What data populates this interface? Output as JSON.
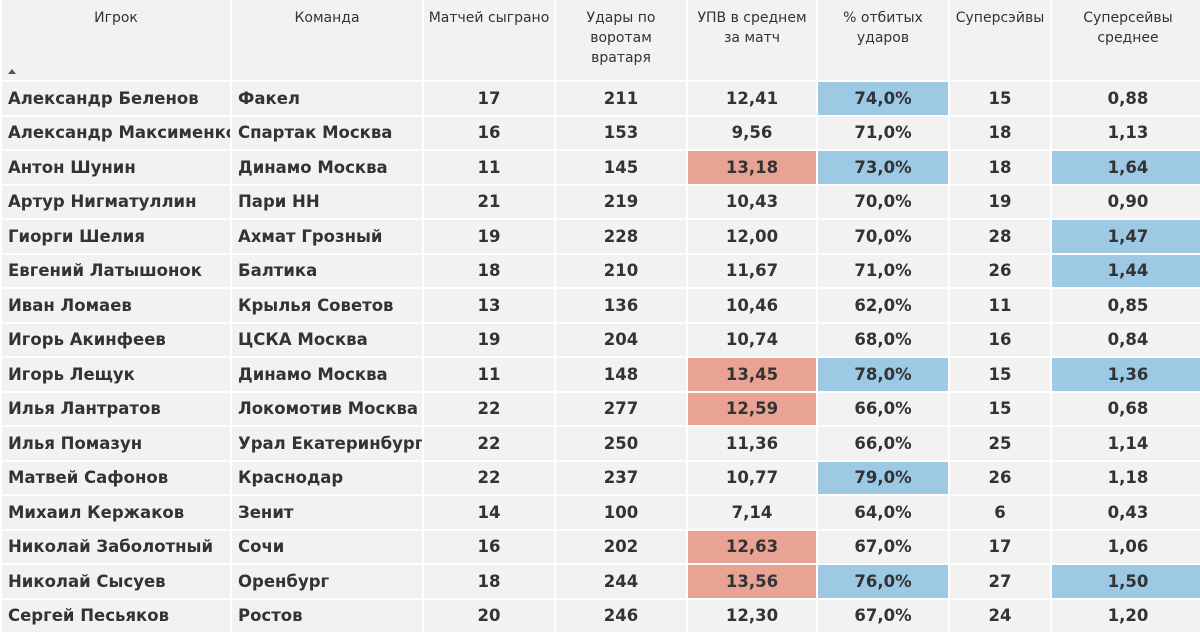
{
  "columns": [
    "Игрок",
    "Команда",
    "Матчей сыграно",
    "Удары по воротам вратаря",
    "УПВ в среднем за матч",
    "% отбитых ударов",
    "Суперсэйвы",
    "Суперсейвы среднее"
  ],
  "sort": {
    "column": "Игрок",
    "direction": "ascending",
    "icon": "sort-ascending-icon"
  },
  "highlight_colors": {
    "red": "#e8a394",
    "blue": "#9ec9e4"
  },
  "rows": [
    {
      "player": "Александр Беленов",
      "team": "Факел",
      "matches": "17",
      "shots": "211",
      "spg": "12,41",
      "save_pct": "74,0%",
      "supersaves": "15",
      "supersaves_avg": "0,88",
      "hl_spg": "",
      "hl_pct": "blue",
      "hl_avg": ""
    },
    {
      "player": "Александр Максименко",
      "team": "Спартак Москва",
      "matches": "16",
      "shots": "153",
      "spg": "9,56",
      "save_pct": "71,0%",
      "supersaves": "18",
      "supersaves_avg": "1,13",
      "hl_spg": "",
      "hl_pct": "",
      "hl_avg": ""
    },
    {
      "player": "Антон Шунин",
      "team": "Динамо Москва",
      "matches": "11",
      "shots": "145",
      "spg": "13,18",
      "save_pct": "73,0%",
      "supersaves": "18",
      "supersaves_avg": "1,64",
      "hl_spg": "red",
      "hl_pct": "blue",
      "hl_avg": "blue"
    },
    {
      "player": "Артур Нигматуллин",
      "team": "Пари НН",
      "matches": "21",
      "shots": "219",
      "spg": "10,43",
      "save_pct": "70,0%",
      "supersaves": "19",
      "supersaves_avg": "0,90",
      "hl_spg": "",
      "hl_pct": "",
      "hl_avg": ""
    },
    {
      "player": "Гиорги Шелия",
      "team": "Ахмат Грозный",
      "matches": "19",
      "shots": "228",
      "spg": "12,00",
      "save_pct": "70,0%",
      "supersaves": "28",
      "supersaves_avg": "1,47",
      "hl_spg": "",
      "hl_pct": "",
      "hl_avg": "blue"
    },
    {
      "player": "Евгений Латышонок",
      "team": "Балтика",
      "matches": "18",
      "shots": "210",
      "spg": "11,67",
      "save_pct": "71,0%",
      "supersaves": "26",
      "supersaves_avg": "1,44",
      "hl_spg": "",
      "hl_pct": "",
      "hl_avg": "blue"
    },
    {
      "player": "Иван Ломаев",
      "team": "Крылья Советов",
      "matches": "13",
      "shots": "136",
      "spg": "10,46",
      "save_pct": "62,0%",
      "supersaves": "11",
      "supersaves_avg": "0,85",
      "hl_spg": "",
      "hl_pct": "",
      "hl_avg": ""
    },
    {
      "player": "Игорь Акинфеев",
      "team": "ЦСКА Москва",
      "matches": "19",
      "shots": "204",
      "spg": "10,74",
      "save_pct": "68,0%",
      "supersaves": "16",
      "supersaves_avg": "0,84",
      "hl_spg": "",
      "hl_pct": "",
      "hl_avg": ""
    },
    {
      "player": "Игорь Лещук",
      "team": "Динамо Москва",
      "matches": "11",
      "shots": "148",
      "spg": "13,45",
      "save_pct": "78,0%",
      "supersaves": "15",
      "supersaves_avg": "1,36",
      "hl_spg": "red",
      "hl_pct": "blue",
      "hl_avg": "blue"
    },
    {
      "player": "Илья Лантратов",
      "team": "Локомотив Москва",
      "matches": "22",
      "shots": "277",
      "spg": "12,59",
      "save_pct": "66,0%",
      "supersaves": "15",
      "supersaves_avg": "0,68",
      "hl_spg": "red",
      "hl_pct": "",
      "hl_avg": ""
    },
    {
      "player": "Илья Помазун",
      "team": "Урал Екатеринбург",
      "matches": "22",
      "shots": "250",
      "spg": "11,36",
      "save_pct": "66,0%",
      "supersaves": "25",
      "supersaves_avg": "1,14",
      "hl_spg": "",
      "hl_pct": "",
      "hl_avg": ""
    },
    {
      "player": "Матвей Сафонов",
      "team": "Краснодар",
      "matches": "22",
      "shots": "237",
      "spg": "10,77",
      "save_pct": "79,0%",
      "supersaves": "26",
      "supersaves_avg": "1,18",
      "hl_spg": "",
      "hl_pct": "blue",
      "hl_avg": ""
    },
    {
      "player": "Михаил Кержаков",
      "team": "Зенит",
      "matches": "14",
      "shots": "100",
      "spg": "7,14",
      "save_pct": "64,0%",
      "supersaves": "6",
      "supersaves_avg": "0,43",
      "hl_spg": "",
      "hl_pct": "",
      "hl_avg": ""
    },
    {
      "player": "Николай Заболотный",
      "team": "Сочи",
      "matches": "16",
      "shots": "202",
      "spg": "12,63",
      "save_pct": "67,0%",
      "supersaves": "17",
      "supersaves_avg": "1,06",
      "hl_spg": "red",
      "hl_pct": "",
      "hl_avg": ""
    },
    {
      "player": "Николай Сысуев",
      "team": "Оренбург",
      "matches": "18",
      "shots": "244",
      "spg": "13,56",
      "save_pct": "76,0%",
      "supersaves": "27",
      "supersaves_avg": "1,50",
      "hl_spg": "red",
      "hl_pct": "blue",
      "hl_avg": "blue"
    },
    {
      "player": "Сергей Песьяков",
      "team": "Ростов",
      "matches": "20",
      "shots": "246",
      "spg": "12,30",
      "save_pct": "67,0%",
      "supersaves": "24",
      "supersaves_avg": "1,20",
      "hl_spg": "",
      "hl_pct": "",
      "hl_avg": ""
    }
  ]
}
